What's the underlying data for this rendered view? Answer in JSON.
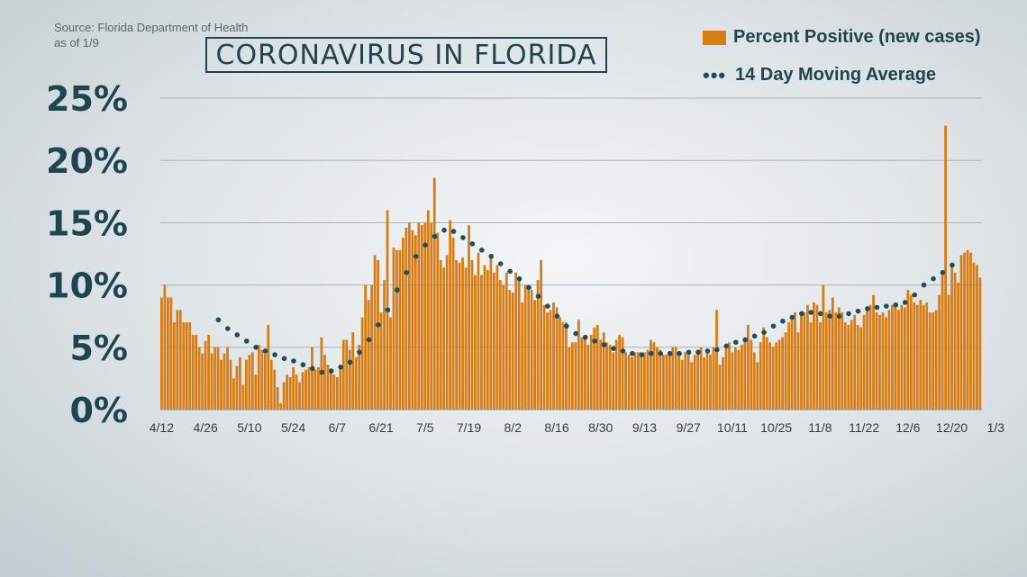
{
  "header": {
    "source_line1": "Source: Florida Department of Health",
    "source_line2": "as of 1/9",
    "title": "CORONAVIRUS IN FLORIDA"
  },
  "legend": {
    "bar_label": "Percent Positive (new cases)",
    "avg_label": "14 Day Moving Average"
  },
  "colors": {
    "bar": "#d97c14",
    "dots": "#1d4e5c",
    "text": "#1d4652",
    "grid": "#aab4ba"
  },
  "chart_data": {
    "type": "bar",
    "title": "CORONAVIRUS IN FLORIDA",
    "xlabel": "",
    "ylabel": "",
    "ylim": [
      0,
      25
    ],
    "y_ticks": [
      "0%",
      "5%",
      "10%",
      "15%",
      "20%",
      "25%"
    ],
    "x_start": "4/12",
    "x_tick_labels": [
      "4/12",
      "4/26",
      "5/10",
      "5/24",
      "6/7",
      "6/21",
      "7/5",
      "7/19",
      "8/2",
      "8/16",
      "8/30",
      "9/13",
      "9/27",
      "10/11",
      "10/25",
      "11/8",
      "11/22",
      "12/6",
      "12/20",
      "1/3"
    ],
    "x_tick_step_days": 14,
    "grid": true,
    "legend_position": "top-right",
    "series": [
      {
        "name": "Percent Positive (new cases)",
        "type": "bar",
        "values": [
          9.0,
          10.0,
          9.0,
          9.0,
          7.0,
          8.0,
          8.0,
          7.0,
          7.0,
          7.0,
          6.0,
          6.0,
          5.0,
          4.5,
          5.5,
          6.0,
          4.5,
          5.0,
          5.0,
          4.0,
          4.5,
          5.0,
          4.0,
          2.5,
          3.5,
          4.2,
          2.0,
          4.0,
          4.4,
          4.6,
          2.8,
          5.2,
          4.8,
          4.5,
          6.8,
          4.0,
          3.2,
          1.8,
          0.5,
          2.2,
          2.8,
          2.6,
          3.4,
          2.8,
          2.2,
          3.0,
          3.2,
          3.4,
          5.0,
          3.2,
          3.4,
          5.8,
          4.4,
          3.6,
          3.0,
          2.8,
          2.6,
          3.6,
          5.6,
          5.6,
          4.8,
          6.2,
          4.2,
          5.2,
          7.4,
          10.0,
          8.8,
          10.0,
          12.4,
          12.0,
          7.8,
          10.4,
          16.0,
          7.4,
          13.0,
          12.8,
          12.8,
          13.8,
          14.6,
          15.0,
          14.4,
          14.0,
          15.0,
          14.8,
          15.0,
          16.0,
          15.0,
          18.6,
          14.2,
          12.0,
          11.4,
          12.4,
          15.2,
          13.8,
          12.0,
          11.8,
          12.2,
          11.4,
          14.8,
          12.0,
          10.8,
          12.6,
          10.8,
          11.6,
          11.2,
          12.4,
          11.0,
          11.6,
          10.4,
          10.0,
          11.0,
          9.6,
          9.4,
          11.0,
          10.6,
          8.6,
          10.0,
          10.0,
          9.6,
          8.8,
          10.4,
          12.0,
          8.4,
          7.8,
          8.0,
          8.6,
          8.2,
          7.4,
          7.0,
          7.0,
          5.0,
          5.4,
          5.4,
          7.2,
          5.8,
          5.8,
          5.2,
          6.0,
          6.6,
          6.8,
          5.6,
          6.2,
          5.4,
          5.2,
          4.6,
          5.6,
          6.0,
          5.8,
          4.6,
          4.4,
          4.2,
          4.6,
          4.6,
          4.4,
          4.6,
          4.8,
          5.6,
          5.4,
          5.0,
          4.8,
          4.4,
          4.4,
          4.4,
          5.0,
          5.0,
          4.6,
          4.0,
          4.6,
          4.4,
          3.8,
          4.4,
          4.8,
          5.0,
          4.2,
          4.6,
          4.4,
          5.0,
          8.0,
          3.6,
          4.2,
          5.0,
          5.4,
          4.6,
          5.0,
          4.8,
          5.2,
          5.8,
          6.8,
          5.6,
          4.6,
          3.8,
          5.4,
          6.6,
          5.8,
          5.4,
          5.0,
          5.4,
          5.6,
          5.8,
          6.2,
          7.0,
          7.4,
          7.8,
          6.2,
          7.6,
          7.8,
          8.4,
          7.0,
          8.6,
          8.4,
          7.0,
          10.0,
          7.8,
          8.0,
          9.0,
          7.8,
          8.2,
          7.8,
          7.0,
          6.8,
          7.2,
          7.6,
          6.8,
          6.6,
          7.6,
          8.0,
          8.4,
          9.2,
          7.8,
          7.6,
          7.8,
          7.4,
          8.0,
          8.4,
          8.6,
          8.0,
          8.4,
          8.2,
          9.6,
          9.2,
          8.6,
          8.4,
          8.8,
          8.4,
          8.6,
          7.8,
          7.8,
          8.0,
          9.2,
          11.0,
          22.8,
          9.2,
          11.6,
          11.0,
          10.2,
          12.4,
          12.6,
          12.8,
          12.6,
          11.8,
          11.6,
          10.6
        ]
      },
      {
        "name": "14 Day Moving Average",
        "type": "dotted-line",
        "x_index": [
          0,
          3,
          6,
          9,
          12,
          15,
          18,
          21,
          24,
          27,
          30,
          33,
          36,
          39,
          42,
          45,
          48,
          51,
          54,
          57,
          60,
          63,
          66,
          69,
          72,
          75,
          78,
          81,
          84,
          87,
          90,
          93,
          96,
          99,
          102,
          105,
          108,
          111,
          114,
          117,
          120,
          123,
          126,
          129,
          132,
          135,
          138,
          141,
          144,
          147,
          150,
          153,
          156,
          159,
          162,
          165,
          168,
          171,
          174,
          177,
          180,
          183,
          186,
          189,
          192,
          195,
          198,
          201,
          204,
          207,
          210,
          213,
          216,
          219,
          222,
          225,
          228,
          231,
          234,
          237,
          240,
          243,
          246,
          249,
          252,
          255,
          258,
          261,
          264,
          267
        ],
        "values": [
          null,
          null,
          null,
          null,
          null,
          null,
          7.2,
          6.5,
          6.0,
          5.5,
          5.0,
          4.7,
          4.4,
          4.1,
          3.9,
          3.6,
          3.3,
          3.0,
          3.1,
          3.4,
          3.8,
          4.6,
          5.6,
          6.8,
          8.0,
          9.6,
          11.0,
          12.3,
          13.2,
          13.9,
          14.4,
          14.3,
          13.8,
          13.3,
          12.8,
          12.3,
          11.7,
          11.1,
          10.5,
          9.8,
          9.1,
          8.3,
          7.5,
          6.7,
          6.1,
          5.8,
          5.5,
          5.2,
          4.9,
          4.7,
          4.5,
          4.4,
          4.5,
          4.5,
          4.5,
          4.5,
          4.6,
          4.6,
          4.7,
          4.8,
          5.1,
          5.4,
          5.6,
          5.9,
          6.2,
          6.7,
          7.1,
          7.4,
          7.7,
          7.8,
          7.7,
          7.5,
          7.5,
          7.7,
          7.9,
          8.1,
          8.2,
          8.3,
          8.4,
          8.6,
          9.2,
          10.0,
          10.5,
          11.0,
          11.6,
          null,
          null,
          null,
          null,
          null
        ]
      }
    ]
  }
}
